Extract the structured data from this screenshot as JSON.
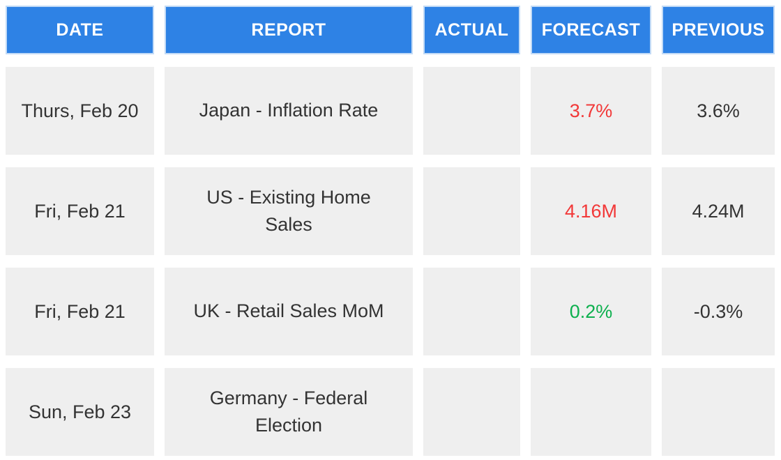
{
  "chart_data": {
    "type": "table",
    "title": "",
    "columns": [
      "DATE",
      "REPORT",
      "ACTUAL",
      "FORECAST",
      "PREVIOUS"
    ],
    "rows": [
      {
        "date": "Thurs, Feb 20",
        "report": "Japan - Inflation Rate",
        "actual": "",
        "forecast": "3.7%",
        "forecast_color": "red",
        "previous": "3.6%"
      },
      {
        "date": "Fri, Feb 21",
        "report": "US - Existing Home\nSales",
        "actual": "",
        "forecast": "4.16M",
        "forecast_color": "red",
        "previous": "4.24M"
      },
      {
        "date": "Fri, Feb 21",
        "report": "UK - Retail Sales MoM",
        "actual": "",
        "forecast": "0.2%",
        "forecast_color": "green",
        "previous": "-0.3%"
      },
      {
        "date": "Sun, Feb 23",
        "report": "Germany - Federal\nElection",
        "actual": "",
        "forecast": "",
        "forecast_color": "",
        "previous": ""
      }
    ],
    "layout": {
      "grid": "off",
      "header_position": "top"
    }
  },
  "colors": {
    "header_bg": "#2E82E5",
    "header_border": "#C3DBF6",
    "header_text": "#FFFFFF",
    "cell_bg": "#EFEFEF",
    "cell_text": "#333333",
    "forecast_worse_red": "#F23838",
    "forecast_better_green": "#0DB04E"
  }
}
